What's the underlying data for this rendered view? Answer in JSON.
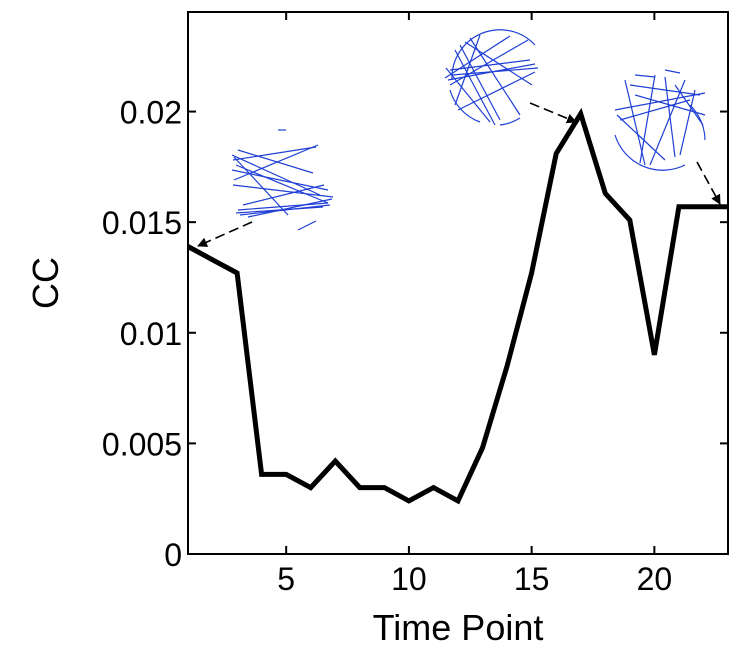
{
  "chart_data": {
    "type": "line",
    "title": "",
    "xlabel": "Time Point",
    "ylabel": "CC",
    "xlim": [
      1,
      23
    ],
    "ylim": [
      0,
      0.0245
    ],
    "xticks": [
      5,
      10,
      15,
      20
    ],
    "xtick_labels": [
      "5",
      "10",
      "15",
      "20"
    ],
    "yticks": [
      0,
      0.005,
      0.01,
      0.015,
      0.02
    ],
    "ytick_labels": [
      "0",
      "0.005",
      "0.01",
      "0.015",
      "0.02"
    ],
    "grid": false,
    "legend": "none",
    "line_color": "#000000",
    "series": [
      {
        "x": [
          1,
          2,
          3,
          4,
          5,
          6,
          7,
          8,
          9,
          10,
          11,
          12,
          13,
          14,
          15,
          16,
          17,
          18,
          19,
          20,
          21,
          22,
          23
        ],
        "values": [
          0.0139,
          0.0133,
          0.0127,
          0.0036,
          0.0036,
          0.003,
          0.0042,
          0.003,
          0.003,
          0.0024,
          0.003,
          0.0024,
          0.0048,
          0.0085,
          0.0127,
          0.0181,
          0.0199,
          0.0163,
          0.0151,
          0.009,
          0.0157,
          0.0157,
          0.0157
        ]
      }
    ],
    "annotations": [
      {
        "type": "network-inset-arrow",
        "x": 1,
        "y": 0.0139,
        "icon": "network-graph-inset"
      },
      {
        "type": "network-inset-arrow",
        "x": 17,
        "y": 0.0199,
        "icon": "network-graph-inset"
      },
      {
        "type": "network-inset-arrow",
        "x": 23,
        "y": 0.0157,
        "icon": "network-graph-inset"
      }
    ]
  }
}
